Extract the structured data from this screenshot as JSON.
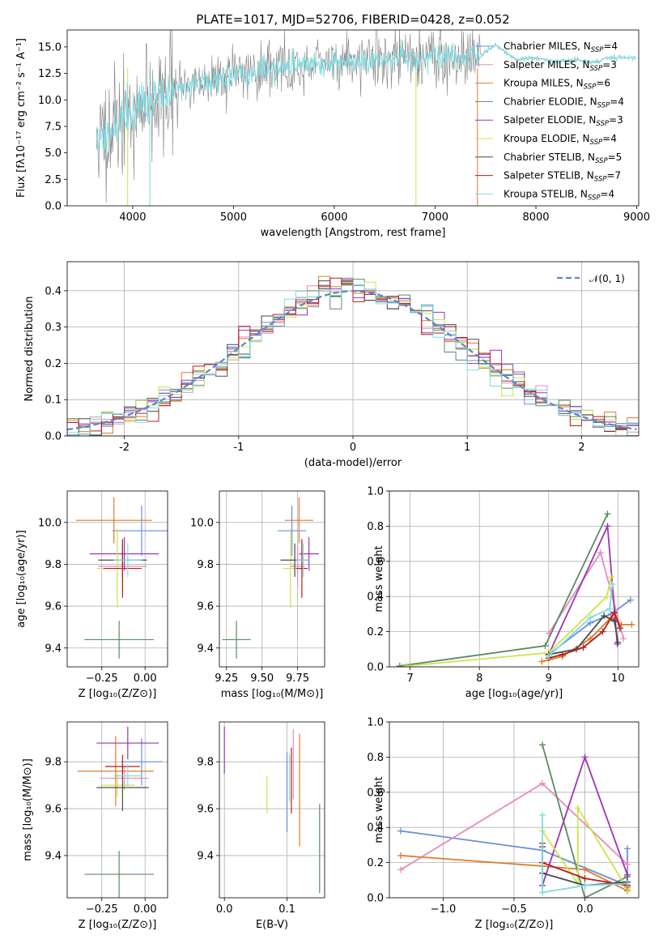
{
  "colors": {
    "Chabrier MILES": "#6a8fd8",
    "Salpeter MILES": "#e68bbf",
    "Kroupa MILES": "#e07b2a",
    "Chabrier ELODIE": "#5c8a64",
    "Salpeter ELODIE": "#9b35b5",
    "Kroupa ELODIE": "#cfe34a",
    "Chabrier STELIB": "#4a4a4a",
    "Salpeter STELIB": "#b41e1e",
    "Kroupa STELIB": "#7fdbe0",
    "spectrum": "#808080",
    "gaussian": "#5b86c9"
  },
  "chart_data": [
    {
      "id": "spectrum",
      "type": "line",
      "title": "PLATE=1017, MJD=52706, FIBERID=0428, z=0.052",
      "xlabel": "wavelength [Angstrom, rest frame]",
      "ylabel": "Flux [fλ10⁻¹⁷ erg cm⁻² s⁻¹ A⁻¹]",
      "xlim": [
        3350,
        9020
      ],
      "ylim": [
        0,
        16.6
      ],
      "xticks": [
        4000,
        5000,
        6000,
        7000,
        8000,
        9000
      ],
      "yticks": [
        0.0,
        2.5,
        5.0,
        7.5,
        10.0,
        12.5,
        15.0
      ],
      "grid": false,
      "legend_position": "top-right",
      "series": [
        {
          "name": "Chabrier MILES, N_SSP=4"
        },
        {
          "name": "Salpeter MILES, N_SSP=3"
        },
        {
          "name": "Kroupa MILES, N_SSP=6"
        },
        {
          "name": "Chabrier ELODIE, N_SSP=4"
        },
        {
          "name": "Salpeter ELODIE, N_SSP=3"
        },
        {
          "name": "Kroupa ELODIE, N_SSP=4"
        },
        {
          "name": "Chabrier STELIB, N_SSP=5"
        },
        {
          "name": "Salpeter STELIB, N_SSP=7"
        },
        {
          "name": "Kroupa STELIB, N_SSP=4"
        }
      ],
      "continuum_x": [
        3650,
        3800,
        4000,
        4200,
        4400,
        4600,
        4800,
        5000,
        5200,
        5400,
        5600,
        5800,
        6000,
        6200,
        6400,
        6600,
        6800,
        7000,
        7200,
        7400
      ],
      "continuum_y": [
        6.0,
        7.5,
        8.8,
        10.0,
        10.8,
        11.5,
        12.0,
        12.3,
        12.7,
        13.0,
        13.2,
        13.4,
        13.6,
        13.7,
        13.8,
        13.9,
        14.0,
        14.0,
        14.1,
        14.1
      ],
      "model_end_x": [
        7450,
        7600,
        7800,
        8000,
        8200,
        8400,
        8600,
        8700
      ],
      "model_end_y": [
        14.2,
        15.2,
        13.8,
        14.0,
        13.6,
        13.8,
        13.5,
        14.0
      ]
    },
    {
      "id": "residuals",
      "type": "line",
      "xlabel": "(data-model)/error",
      "ylabel": "Normed distribution",
      "xlim": [
        -2.5,
        2.5
      ],
      "ylim": [
        0,
        0.48
      ],
      "xticks": [
        -2,
        -1,
        0,
        1,
        2
      ],
      "yticks": [
        0.0,
        0.1,
        0.2,
        0.3,
        0.4
      ],
      "grid": true,
      "legend": "𝒩(0, 1)",
      "legend_position": "top-right"
    },
    {
      "id": "age-vs-z",
      "type": "scatter",
      "xlabel": "Z [log₁₀(Z/Z⊙)]",
      "ylabel": "age  [log₁₀(age/yr)]",
      "xlim": [
        -0.45,
        0.13
      ],
      "ylim": [
        9.31,
        10.15
      ],
      "xticks": [
        -0.25,
        0.0
      ],
      "xticklabels": [
        "−0.25",
        "0.00"
      ],
      "yticks": [
        9.4,
        9.6,
        9.8,
        10.0
      ],
      "grid": true,
      "points": [
        {
          "s": "Chabrier MILES",
          "x": -0.02,
          "y": 9.96,
          "xe": 0.17,
          "ye": 0.12
        },
        {
          "s": "Salpeter MILES",
          "x": -0.13,
          "y": 9.79,
          "xe": 0.14,
          "ye": 0.1
        },
        {
          "s": "Kroupa MILES",
          "x": -0.18,
          "y": 10.01,
          "xe": 0.22,
          "ye": 0.11
        },
        {
          "s": "Chabrier ELODIE",
          "x": -0.15,
          "y": 9.44,
          "xe": 0.2,
          "ye": 0.09
        },
        {
          "s": "Salpeter ELODIE",
          "x": -0.12,
          "y": 9.85,
          "xe": 0.2,
          "ye": 0.08
        },
        {
          "s": "Kroupa ELODIE",
          "x": -0.16,
          "y": 9.78,
          "xe": 0.12,
          "ye": 0.19
        },
        {
          "s": "Chabrier STELIB",
          "x": -0.13,
          "y": 9.82,
          "xe": 0.14,
          "ye": 0.08
        },
        {
          "s": "Salpeter STELIB",
          "x": -0.13,
          "y": 9.78,
          "xe": 0.11,
          "ye": 0.14
        },
        {
          "s": "Kroupa STELIB",
          "x": -0.1,
          "y": 9.82,
          "xe": 0.08,
          "ye": 0.08
        }
      ]
    },
    {
      "id": "age-vs-mass",
      "type": "scatter",
      "xlabel": "mass [log₁₀(M/M⊙)]",
      "xlim": [
        9.2,
        9.94
      ],
      "ylim": [
        9.31,
        10.15
      ],
      "xticks": [
        9.25,
        9.5,
        9.75
      ],
      "xticklabels": [
        "9.25",
        "9.50",
        "9.75"
      ],
      "yticks": [
        9.4,
        9.6,
        9.8,
        10.0
      ],
      "grid": true,
      "points": [
        {
          "s": "Chabrier MILES",
          "x": 9.71,
          "y": 9.96,
          "xe": 0.1,
          "ye": 0.12
        },
        {
          "s": "Salpeter MILES",
          "x": 9.75,
          "y": 9.79,
          "xe": 0.05,
          "ye": 0.1
        },
        {
          "s": "Kroupa MILES",
          "x": 9.76,
          "y": 10.01,
          "xe": 0.1,
          "ye": 0.11
        },
        {
          "s": "Chabrier ELODIE",
          "x": 9.32,
          "y": 9.44,
          "xe": 0.1,
          "ye": 0.09
        },
        {
          "s": "Salpeter ELODIE",
          "x": 9.83,
          "y": 9.85,
          "xe": 0.07,
          "ye": 0.08
        },
        {
          "s": "Kroupa ELODIE",
          "x": 9.7,
          "y": 9.78,
          "xe": 0.05,
          "ye": 0.19
        },
        {
          "s": "Chabrier STELIB",
          "x": 9.73,
          "y": 9.82,
          "xe": 0.1,
          "ye": 0.08
        },
        {
          "s": "Salpeter STELIB",
          "x": 9.78,
          "y": 9.78,
          "xe": 0.04,
          "ye": 0.14
        },
        {
          "s": "Kroupa STELIB",
          "x": 9.79,
          "y": 9.82,
          "xe": 0.05,
          "ye": 0.08
        }
      ]
    },
    {
      "id": "weight-vs-age",
      "type": "line",
      "xlabel": "age  [log₁₀(age/yr)]",
      "ylabel": "mass weight",
      "xlim": [
        6.7,
        10.3
      ],
      "ylim": [
        0,
        1.0
      ],
      "xticks": [
        7,
        8,
        9,
        10
      ],
      "yticks": [
        0.0,
        0.2,
        0.4,
        0.6,
        0.8,
        1.0
      ],
      "grid": true,
      "series": [
        {
          "s": "Chabrier MILES",
          "x": [
            9.0,
            9.6,
            9.9,
            10.18
          ],
          "y": [
            0.07,
            0.25,
            0.3,
            0.38
          ]
        },
        {
          "s": "Salpeter MILES",
          "x": [
            9.0,
            9.75,
            10.08
          ],
          "y": [
            0.19,
            0.65,
            0.16
          ]
        },
        {
          "s": "Kroupa MILES",
          "x": [
            8.9,
            9.2,
            9.6,
            9.9,
            10.05,
            10.2
          ],
          "y": [
            0.03,
            0.06,
            0.16,
            0.28,
            0.24,
            0.24
          ]
        },
        {
          "s": "Chabrier ELODIE",
          "x": [
            6.85,
            8.95,
            9.85
          ],
          "y": [
            0.005,
            0.12,
            0.87
          ]
        },
        {
          "s": "Salpeter ELODIE",
          "x": [
            9.0,
            9.85,
            9.99
          ],
          "y": [
            0.07,
            0.8,
            0.13
          ]
        },
        {
          "s": "Kroupa ELODIE",
          "x": [
            6.95,
            9.0,
            9.84,
            9.9
          ],
          "y": [
            0.005,
            0.08,
            0.4,
            0.51
          ]
        },
        {
          "s": "Chabrier STELIB",
          "x": [
            9.0,
            9.4,
            9.8,
            9.95,
            10.0
          ],
          "y": [
            0.07,
            0.1,
            0.29,
            0.26,
            0.14
          ]
        },
        {
          "s": "Salpeter STELIB",
          "x": [
            9.0,
            9.2,
            9.5,
            9.78,
            9.95,
            10.03
          ],
          "y": [
            0.05,
            0.07,
            0.11,
            0.2,
            0.31,
            0.22
          ]
        },
        {
          "s": "Kroupa STELIB",
          "x": [
            9.0,
            9.6,
            9.88,
            9.92
          ],
          "y": [
            0.06,
            0.28,
            0.33,
            0.47
          ]
        }
      ]
    },
    {
      "id": "mass-vs-z",
      "type": "scatter",
      "xlabel": "Z [log₁₀(Z/Z⊙)]",
      "ylabel": "mass [log₁₀(M/M⊙)]",
      "xlim": [
        -0.45,
        0.13
      ],
      "ylim": [
        9.22,
        9.97
      ],
      "xticks": [
        -0.25,
        0.0
      ],
      "xticklabels": [
        "−0.25",
        "0.00"
      ],
      "yticks": [
        9.4,
        9.6,
        9.8
      ],
      "grid": true,
      "points": [
        {
          "s": "Chabrier MILES",
          "x": -0.02,
          "y": 9.8,
          "xe": 0.12,
          "ye": 0.1
        },
        {
          "s": "Salpeter MILES",
          "x": -0.12,
          "y": 9.73,
          "xe": 0.14,
          "ye": 0.05
        },
        {
          "s": "Kroupa MILES",
          "x": -0.17,
          "y": 9.76,
          "xe": 0.22,
          "ye": 0.15
        },
        {
          "s": "Chabrier ELODIE",
          "x": -0.15,
          "y": 9.32,
          "xe": 0.2,
          "ye": 0.1
        },
        {
          "s": "Salpeter ELODIE",
          "x": -0.1,
          "y": 9.88,
          "xe": 0.18,
          "ye": 0.07
        },
        {
          "s": "Kroupa ELODIE",
          "x": -0.16,
          "y": 9.7,
          "xe": 0.1,
          "ye": 0.05
        },
        {
          "s": "Chabrier STELIB",
          "x": -0.13,
          "y": 9.69,
          "xe": 0.15,
          "ye": 0.1
        },
        {
          "s": "Salpeter STELIB",
          "x": -0.13,
          "y": 9.78,
          "xe": 0.1,
          "ye": 0.05
        },
        {
          "s": "Kroupa STELIB",
          "x": -0.1,
          "y": 9.74,
          "xe": 0.08,
          "ye": 0.05
        }
      ]
    },
    {
      "id": "mass-vs-ebv",
      "type": "scatter",
      "xlabel": "E(B-V)",
      "xlim": [
        -0.008,
        0.16
      ],
      "ylim": [
        9.22,
        9.97
      ],
      "xticks": [
        0.0,
        0.1
      ],
      "xticklabels": [
        "0.0",
        "0.1"
      ],
      "yticks": [
        9.4,
        9.6,
        9.8
      ],
      "grid": true,
      "points": [
        {
          "s": "Salpeter ELODIE",
          "x": 0.0,
          "y": 9.85,
          "xe": 0.0,
          "ye": 0.1
        },
        {
          "s": "Kroupa ELODIE",
          "x": 0.068,
          "y": 9.66,
          "xe": 0.0,
          "ye": 0.08
        },
        {
          "s": "Chabrier MILES",
          "x": 0.1,
          "y": 9.67,
          "xe": 0.0,
          "ye": 0.17
        },
        {
          "s": "Kroupa STELIB",
          "x": 0.104,
          "y": 9.73,
          "xe": 0.0,
          "ye": 0.1
        },
        {
          "s": "Salpeter MILES",
          "x": 0.11,
          "y": 9.79,
          "xe": 0.0,
          "ye": 0.15
        },
        {
          "s": "Salpeter STELIB",
          "x": 0.107,
          "y": 9.72,
          "xe": 0.0,
          "ye": 0.14
        },
        {
          "s": "Kroupa MILES",
          "x": 0.12,
          "y": 9.68,
          "xe": 0.0,
          "ye": 0.24
        },
        {
          "s": "Chabrier ELODIE",
          "x": 0.152,
          "y": 9.43,
          "xe": 0.0,
          "ye": 0.19
        }
      ]
    },
    {
      "id": "weight-vs-z",
      "type": "line",
      "xlabel": "Z [log₁₀(Z/Z⊙)]",
      "ylabel": "mass weight",
      "xlim": [
        -1.38,
        0.38
      ],
      "ylim": [
        0,
        1.0
      ],
      "xticks": [
        -1.0,
        -0.5,
        0.0
      ],
      "xticklabels": [
        "−1.0",
        "−0.5",
        "0.0"
      ],
      "yticks": [
        0.0,
        0.2,
        0.4,
        0.6,
        0.8,
        1.0
      ],
      "grid": true,
      "series": [
        {
          "s": "Chabrier MILES",
          "x": [
            -1.3,
            -0.3,
            0.3,
            0.3
          ],
          "y": [
            0.38,
            0.27,
            0.07,
            0.28
          ]
        },
        {
          "s": "Salpeter MILES",
          "x": [
            -1.3,
            -0.3,
            0.3
          ],
          "y": [
            0.16,
            0.65,
            0.19
          ]
        },
        {
          "s": "Kroupa MILES",
          "x": [
            -1.3,
            -0.3,
            0.0,
            0.3,
            0.3
          ],
          "y": [
            0.24,
            0.18,
            0.16,
            0.04,
            0.06
          ]
        },
        {
          "s": "Chabrier ELODIE",
          "x": [
            -0.3,
            0.0,
            0.3
          ],
          "y": [
            0.87,
            0.0,
            0.12
          ]
        },
        {
          "s": "Salpeter ELODIE",
          "x": [
            -0.3,
            0.0,
            0.3
          ],
          "y": [
            0.07,
            0.8,
            0.13
          ]
        },
        {
          "s": "Kroupa ELODIE",
          "x": [
            -0.3,
            -0.05,
            -0.05,
            0.3
          ],
          "y": [
            0.38,
            0.08,
            0.51,
            0.05
          ]
        },
        {
          "s": "Chabrier STELIB",
          "x": [
            -0.3,
            -0.3,
            0.0,
            0.3
          ],
          "y": [
            0.29,
            0.14,
            0.07,
            0.09
          ]
        },
        {
          "s": "Salpeter STELIB",
          "x": [
            -0.3,
            -0.3,
            0.0,
            0.3
          ],
          "y": [
            0.31,
            0.2,
            0.11,
            0.07
          ]
        },
        {
          "s": "Kroupa STELIB",
          "x": [
            -0.3,
            -0.3,
            0.0,
            0.3
          ],
          "y": [
            0.47,
            0.03,
            0.07,
            0.08
          ]
        }
      ]
    }
  ]
}
